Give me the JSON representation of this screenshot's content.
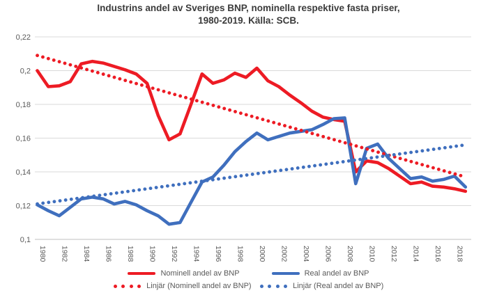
{
  "title": {
    "line1": "Industrins andel av Sveriges BNP, nominella respektive fasta priser,",
    "line2": "1980-2019. Källa: SCB."
  },
  "colors": {
    "nominal_red": "#ED1B24",
    "real_blue": "#3F6FBE",
    "gridline": "#D9D9D9",
    "axis_line": "#BFBFBF",
    "axis_text": "#595959",
    "title_text": "#3B3B3B"
  },
  "chart_data": {
    "type": "line",
    "title": "Industrins andel av Sveriges BNP, nominella respektive fasta priser, 1980-2019. Källa: SCB.",
    "x": [
      1980,
      1981,
      1982,
      1983,
      1984,
      1985,
      1986,
      1987,
      1988,
      1989,
      1990,
      1991,
      1992,
      1993,
      1994,
      1995,
      1996,
      1997,
      1998,
      1999,
      2000,
      2001,
      2002,
      2003,
      2004,
      2005,
      2006,
      2007,
      2008,
      2009,
      2010,
      2011,
      2012,
      2013,
      2014,
      2015,
      2016,
      2017,
      2018,
      2019
    ],
    "series": [
      {
        "name": "Nominell andel av BNP",
        "style": "solid",
        "color": "#ED1B24",
        "values": [
          0.2,
          0.1905,
          0.191,
          0.1935,
          0.204,
          0.2055,
          0.2045,
          0.2025,
          0.2005,
          0.198,
          0.1925,
          0.1735,
          0.159,
          0.1625,
          0.18,
          0.198,
          0.1925,
          0.1945,
          0.1985,
          0.196,
          0.2015,
          0.194,
          0.1905,
          0.1855,
          0.181,
          0.176,
          0.1725,
          0.171,
          0.17,
          0.14,
          0.1465,
          0.1455,
          0.142,
          0.1375,
          0.133,
          0.134,
          0.1315,
          0.131,
          0.13,
          0.1285
        ]
      },
      {
        "name": "Real andel av BNP",
        "style": "solid",
        "color": "#3F6FBE",
        "values": [
          0.1205,
          0.117,
          0.114,
          0.119,
          0.124,
          0.125,
          0.124,
          0.121,
          0.1225,
          0.1205,
          0.117,
          0.114,
          0.109,
          0.11,
          0.122,
          0.134,
          0.137,
          0.144,
          0.152,
          0.158,
          0.163,
          0.159,
          0.161,
          0.163,
          0.164,
          0.165,
          0.168,
          0.1715,
          0.172,
          0.133,
          0.154,
          0.1565,
          0.148,
          0.142,
          0.136,
          0.137,
          0.1345,
          0.1355,
          0.1375,
          0.131
        ]
      },
      {
        "name": "Linjär (Nominell andel av BNP)",
        "style": "dotted",
        "color": "#ED1B24",
        "trend": {
          "start": 0.209,
          "end": 0.137
        }
      },
      {
        "name": "Linjär (Real andel av BNP)",
        "style": "dotted",
        "color": "#3F6FBE",
        "trend": {
          "start": 0.121,
          "end": 0.156
        }
      }
    ],
    "ylim": [
      0.1,
      0.22
    ],
    "yticks": [
      {
        "value": 0.22,
        "label": "0,22"
      },
      {
        "value": 0.2,
        "label": "0,2"
      },
      {
        "value": 0.18,
        "label": "0,18"
      },
      {
        "value": 0.16,
        "label": "0,16"
      },
      {
        "value": 0.14,
        "label": "0,14"
      },
      {
        "value": 0.12,
        "label": "0,12"
      },
      {
        "value": 0.1,
        "label": "0,1"
      }
    ],
    "xtick_labels": [
      "1980",
      "1982",
      "1984",
      "1986",
      "1988",
      "1990",
      "1992",
      "1994",
      "1996",
      "1998",
      "2000",
      "2002",
      "2004",
      "2006",
      "2008",
      "2010",
      "2012",
      "2014",
      "2016",
      "2018"
    ],
    "grid": true,
    "legend_position": "bottom"
  }
}
